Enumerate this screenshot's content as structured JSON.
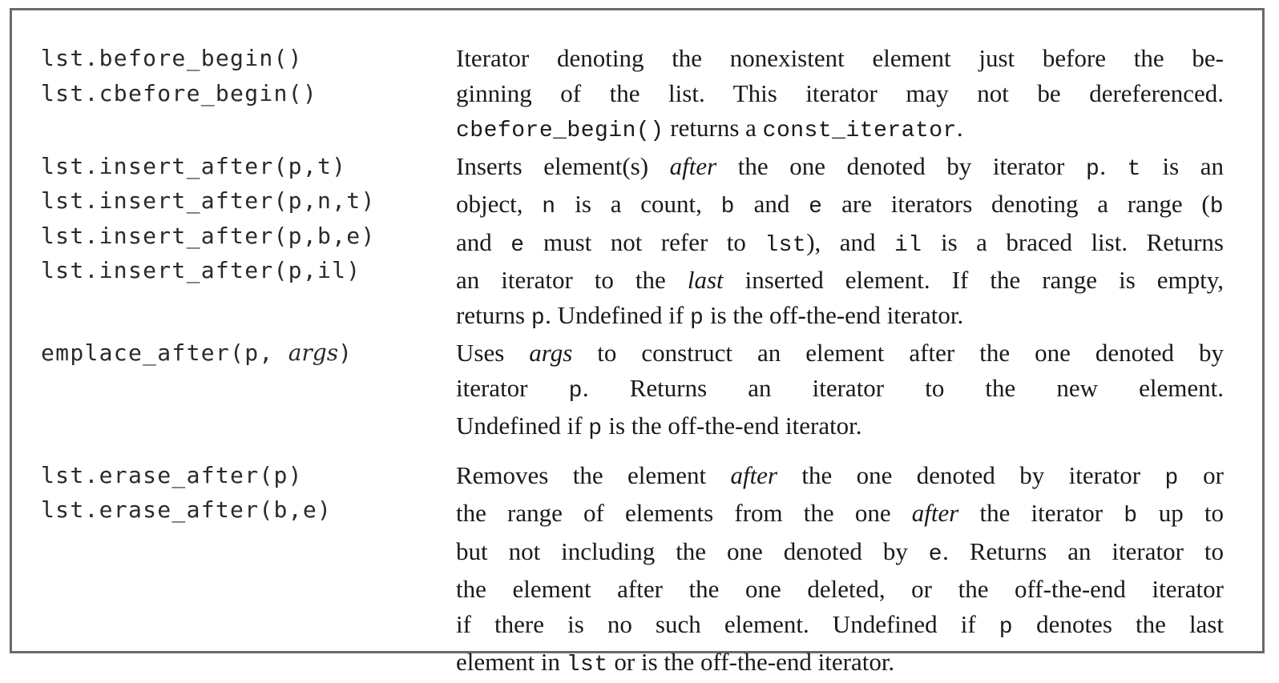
{
  "entries": [
    {
      "signatures": [
        "lst.before_begin()",
        "lst.cbefore_begin()"
      ],
      "description": [
        [
          {
            "t": "Iterator denoting the nonexistent element just before the be-"
          }
        ],
        [
          {
            "t": "ginning of the list.  This iterator may not be dereferenced."
          }
        ],
        [
          {
            "t": "cbefore_begin()",
            "s": "code"
          },
          {
            "t": " returns a "
          },
          {
            "t": "const_iterator",
            "s": "code"
          },
          {
            "t": "."
          }
        ]
      ]
    },
    {
      "signatures": [
        "lst.insert_after(p,t)",
        "lst.insert_after(p,n,t)",
        "lst.insert_after(p,b,e)",
        "lst.insert_after(p,il)"
      ],
      "description": [
        [
          {
            "t": "Inserts element(s) "
          },
          {
            "t": "after",
            "s": "em"
          },
          {
            "t": " the one denoted by iterator "
          },
          {
            "t": "p",
            "s": "code"
          },
          {
            "t": ". "
          },
          {
            "t": "t",
            "s": "code"
          },
          {
            "t": " is an"
          }
        ],
        [
          {
            "t": "object, "
          },
          {
            "t": "n",
            "s": "code"
          },
          {
            "t": " is a count, "
          },
          {
            "t": "b",
            "s": "code"
          },
          {
            "t": " and "
          },
          {
            "t": "e",
            "s": "code"
          },
          {
            "t": " are iterators denoting a range ("
          },
          {
            "t": "b",
            "s": "code"
          }
        ],
        [
          {
            "t": "and "
          },
          {
            "t": "e",
            "s": "code"
          },
          {
            "t": " must not refer to "
          },
          {
            "t": "lst",
            "s": "code"
          },
          {
            "t": "), and "
          },
          {
            "t": "il",
            "s": "code"
          },
          {
            "t": " is a braced list. Returns"
          }
        ],
        [
          {
            "t": "an iterator to the "
          },
          {
            "t": "last",
            "s": "em"
          },
          {
            "t": " inserted element. If the range is empty,"
          }
        ],
        [
          {
            "t": "returns "
          },
          {
            "t": "p",
            "s": "code"
          },
          {
            "t": ". Undefined if "
          },
          {
            "t": "p",
            "s": "code"
          },
          {
            "t": " is the off-the-end iterator."
          }
        ]
      ]
    },
    {
      "signatures": [
        [
          {
            "t": "emplace_after(p, "
          },
          {
            "t": "args",
            "s": "em"
          },
          {
            "t": ")"
          }
        ]
      ],
      "description": [
        [
          {
            "t": "Uses "
          },
          {
            "t": "args",
            "s": "em"
          },
          {
            "t": " to construct an element after the one denoted by"
          }
        ],
        [
          {
            "t": "iterator "
          },
          {
            "t": "p",
            "s": "code"
          },
          {
            "t": ". Returns an iterator to the new element."
          }
        ],
        [
          {
            "t": "Undefined if "
          },
          {
            "t": "p",
            "s": "code"
          },
          {
            "t": " is the off-the-end iterator."
          }
        ]
      ]
    },
    {
      "signatures": [
        "lst.erase_after(p)",
        "lst.erase_after(b,e)"
      ],
      "description": [
        [
          {
            "t": "Removes the element "
          },
          {
            "t": "after",
            "s": "em"
          },
          {
            "t": " the one denoted by iterator "
          },
          {
            "t": "p",
            "s": "code"
          },
          {
            "t": " or"
          }
        ],
        [
          {
            "t": "the range of elements from the one "
          },
          {
            "t": "after",
            "s": "em"
          },
          {
            "t": " the iterator "
          },
          {
            "t": "b",
            "s": "code"
          },
          {
            "t": " up to"
          }
        ],
        [
          {
            "t": "but not including the one denoted by "
          },
          {
            "t": "e",
            "s": "code"
          },
          {
            "t": ". Returns an iterator to"
          }
        ],
        [
          {
            "t": "the element after the one deleted, or the off-the-end iterator"
          }
        ],
        [
          {
            "t": "if there is no such element.  Undefined if "
          },
          {
            "t": "p",
            "s": "code"
          },
          {
            "t": " denotes the last"
          }
        ],
        [
          {
            "t": "element in "
          },
          {
            "t": "lst",
            "s": "code"
          },
          {
            "t": " or is the off-the-end iterator."
          }
        ]
      ]
    }
  ]
}
